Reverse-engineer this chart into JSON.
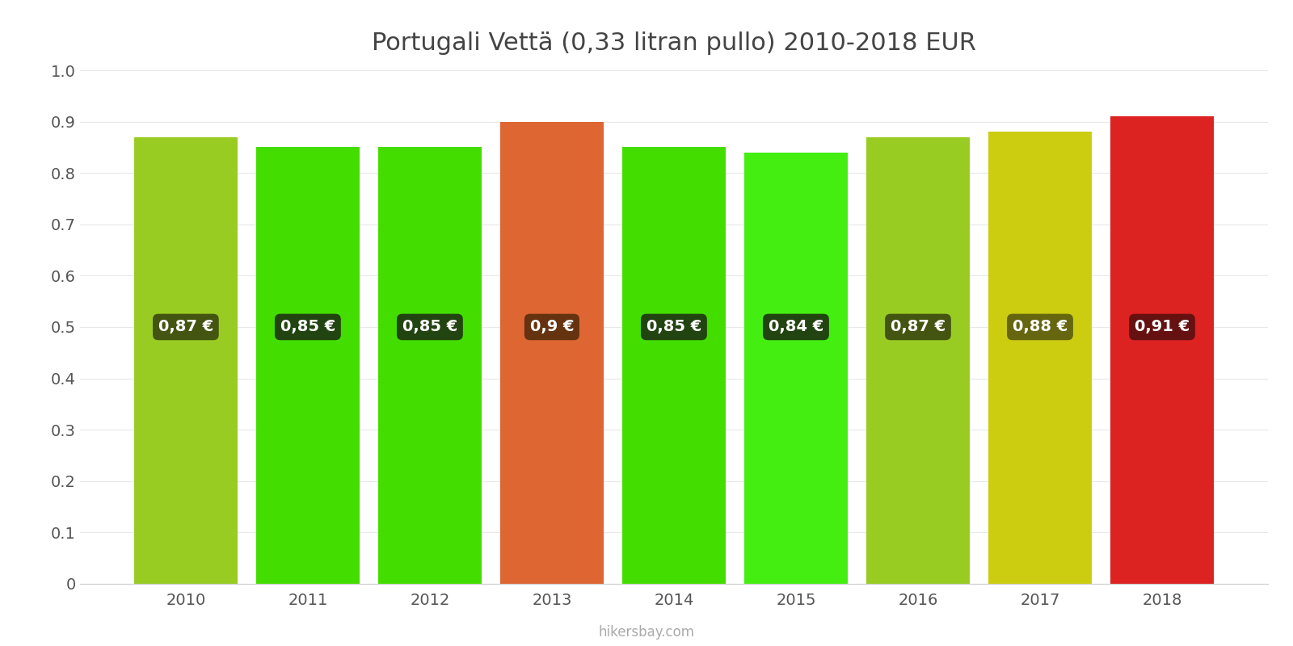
{
  "years": [
    2010,
    2011,
    2012,
    2013,
    2014,
    2015,
    2016,
    2017,
    2018
  ],
  "values": [
    0.87,
    0.85,
    0.85,
    0.9,
    0.85,
    0.84,
    0.87,
    0.88,
    0.91
  ],
  "bar_colors": [
    "#99cc22",
    "#44dd00",
    "#44dd00",
    "#dd6633",
    "#44dd00",
    "#44ee11",
    "#99cc22",
    "#cccc11",
    "#dd2222"
  ],
  "label_bg_colors": [
    "#445511",
    "#224411",
    "#224411",
    "#663311",
    "#224411",
    "#224411",
    "#445511",
    "#666611",
    "#661111"
  ],
  "labels": [
    "0,87 €",
    "0,85 €",
    "0,85 €",
    "0,9 €",
    "0,85 €",
    "0,84 €",
    "0,87 €",
    "0,88 €",
    "0,91 €"
  ],
  "title": "Portugali Vettä (0,33 litran pullo) 2010-2018 EUR",
  "ylim": [
    0,
    1.0
  ],
  "yticks": [
    0,
    0.1,
    0.2,
    0.3,
    0.4,
    0.5,
    0.6,
    0.7,
    0.8,
    0.9,
    1.0
  ],
  "watermark": "hikersbay.com",
  "title_fontsize": 22,
  "label_fontsize": 14,
  "tick_fontsize": 14,
  "bar_width": 0.85
}
